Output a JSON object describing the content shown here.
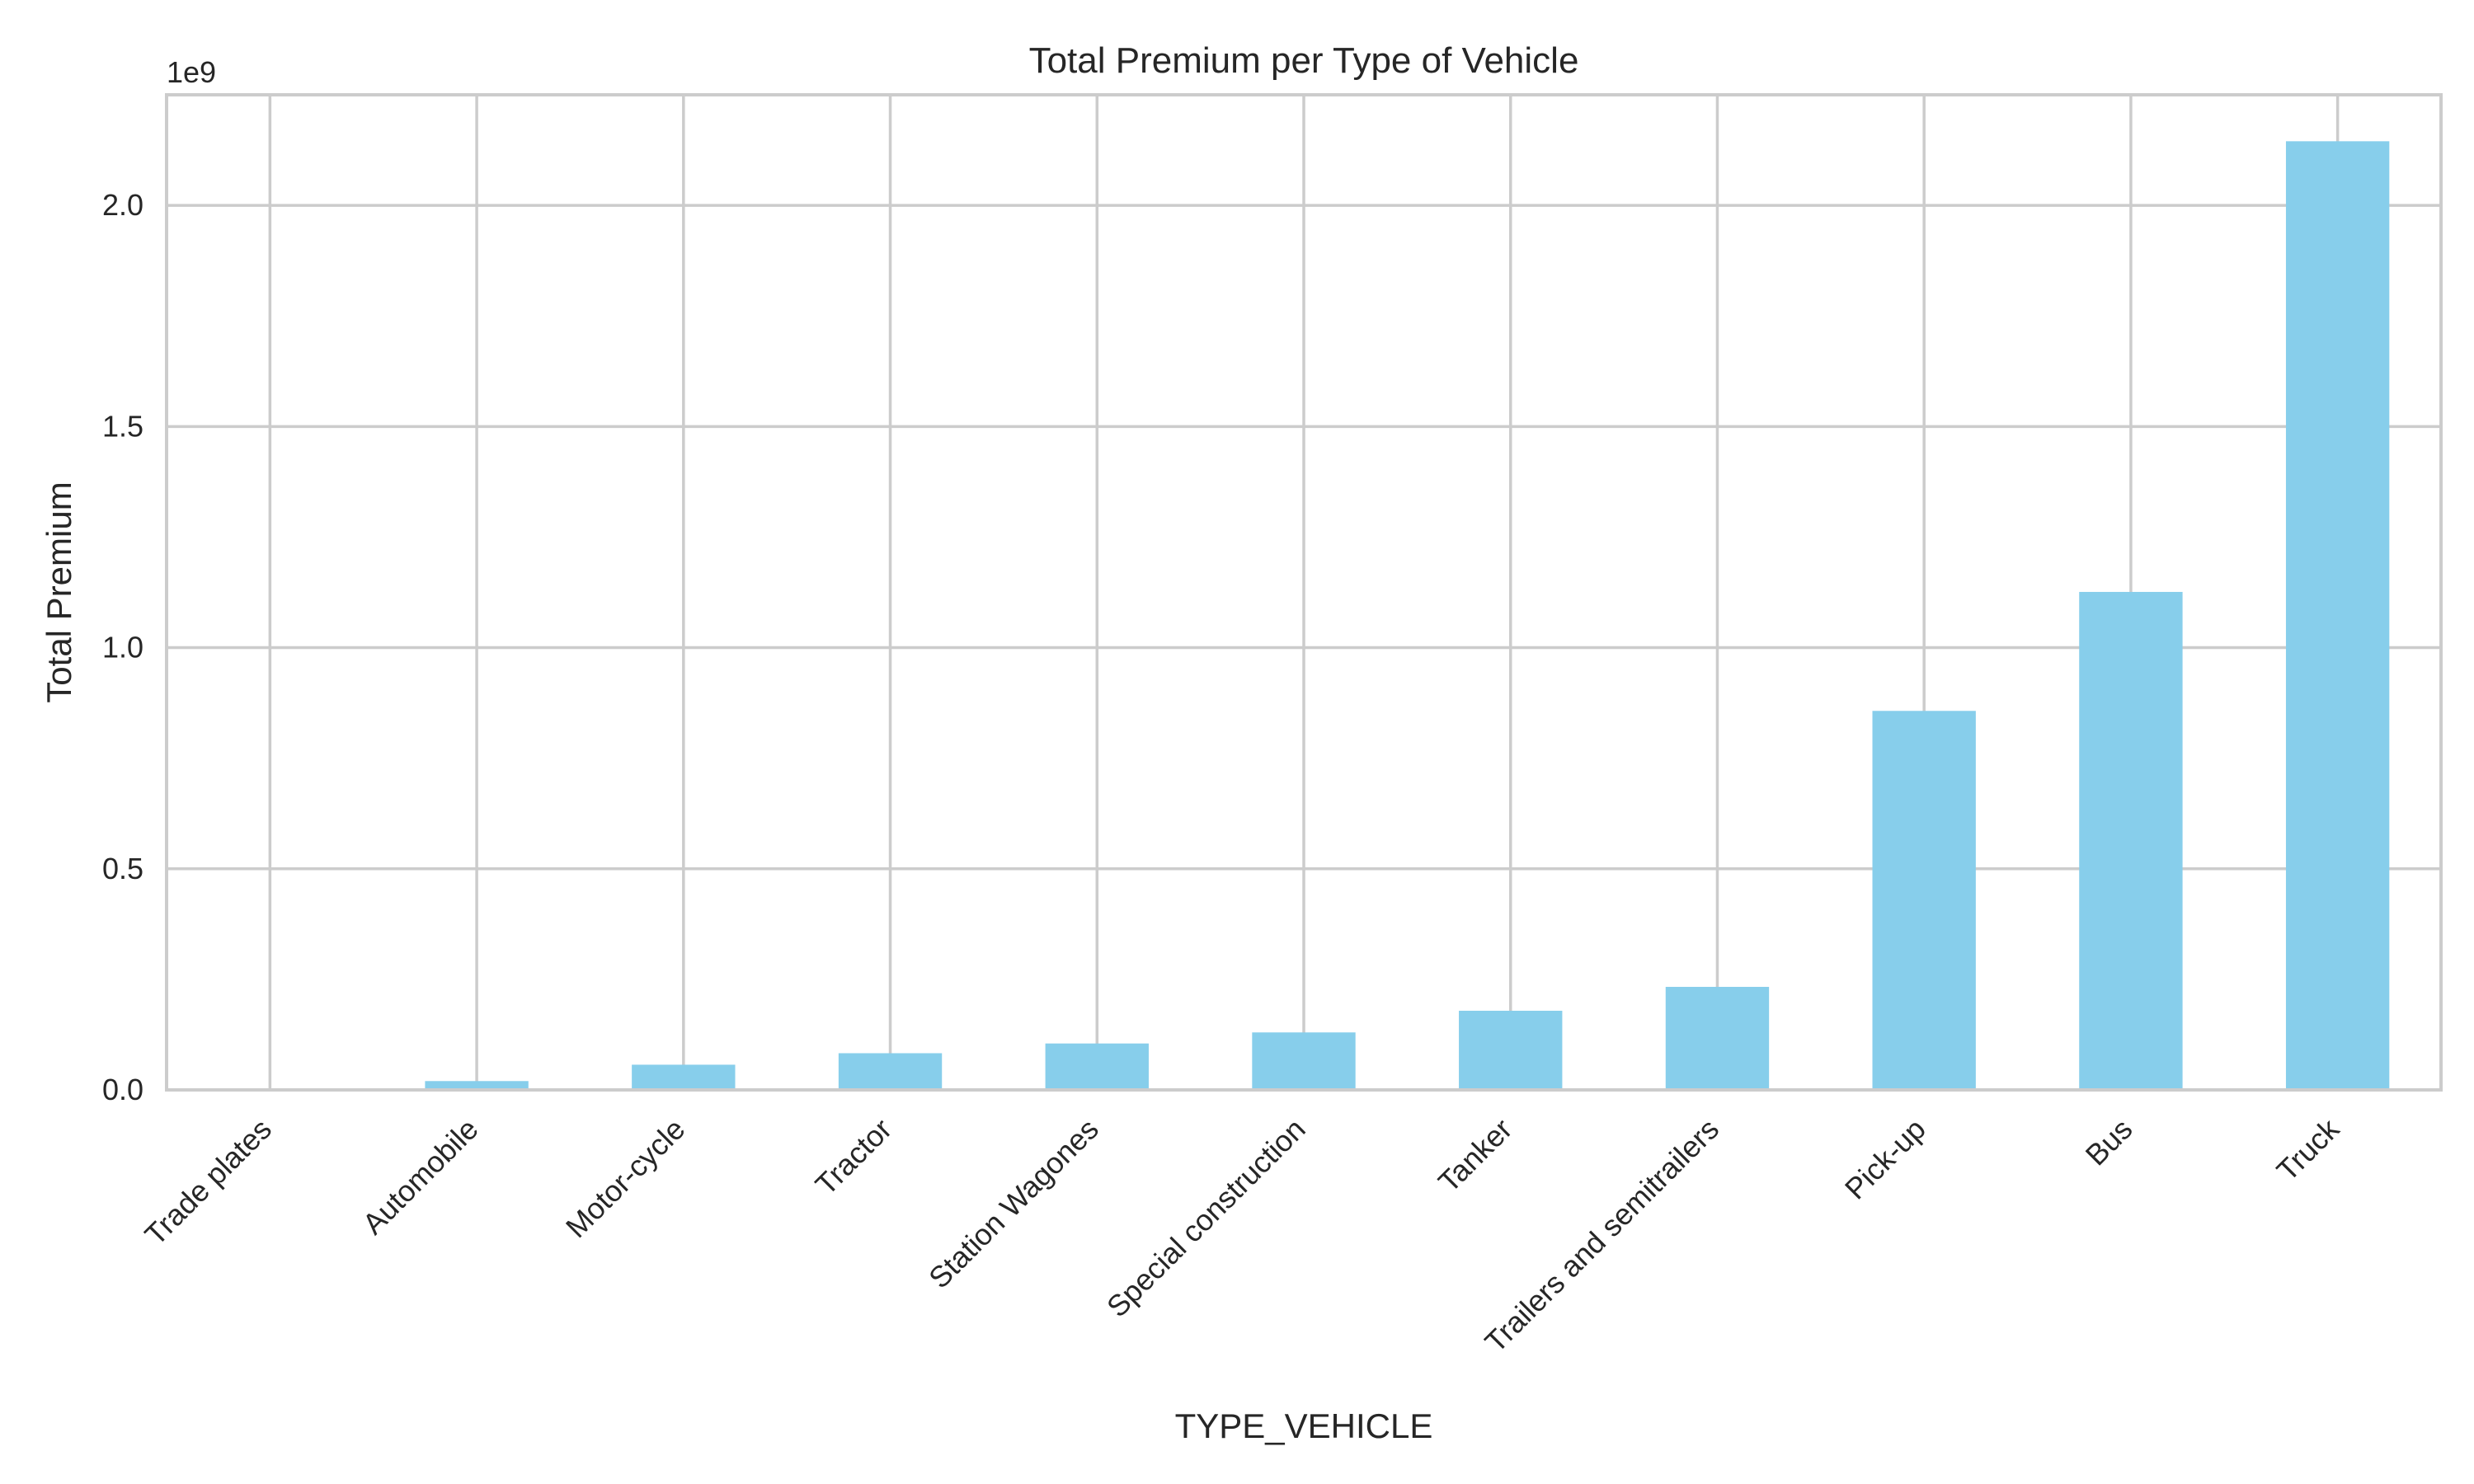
{
  "chart_data": {
    "type": "bar",
    "title": "Total Premium per Type of Vehicle",
    "xlabel": "TYPE_VEHICLE",
    "ylabel": "Total Premium",
    "y_offset_label": "1e9",
    "categories": [
      "Trade plates",
      "Automobile",
      "Motor-cycle",
      "Tractor",
      "Station Wagones",
      "Special construction",
      "Tanker",
      "Trailers and semitrailers",
      "Pick-up",
      "Bus",
      "Truck"
    ],
    "values": [
      0.0,
      0.02,
      0.057,
      0.083,
      0.105,
      0.13,
      0.179,
      0.233,
      0.857,
      1.126,
      2.145
    ],
    "y_ticks": [
      0.0,
      0.5,
      1.0,
      1.5,
      2.0
    ],
    "y_tick_labels": [
      "0.0",
      "0.5",
      "1.0",
      "1.5",
      "2.0"
    ],
    "ylim": [
      0,
      2.25
    ],
    "grid": true,
    "bar_color": "#87ceeb",
    "grid_color": "#cccccc",
    "frame_color": "#cccccc"
  }
}
